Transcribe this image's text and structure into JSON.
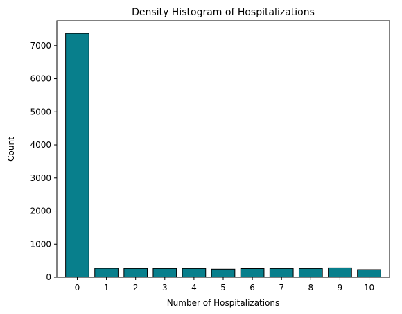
{
  "chart_data": {
    "type": "bar",
    "title": "Density Histogram of Hospitalizations",
    "xlabel": "Number of Hospitalizations",
    "ylabel": "Count",
    "categories": [
      "0",
      "1",
      "2",
      "3",
      "4",
      "5",
      "6",
      "7",
      "8",
      "9",
      "10"
    ],
    "values": [
      7370,
      270,
      265,
      265,
      265,
      245,
      262,
      265,
      265,
      285,
      230
    ],
    "ylim": [
      0,
      7750
    ],
    "yticks": [
      0,
      1000,
      2000,
      3000,
      4000,
      5000,
      6000,
      7000
    ],
    "ytick_labels": [
      "0",
      "1000",
      "2000",
      "3000",
      "4000",
      "5000",
      "6000",
      "7000"
    ],
    "bar_color": "#087f8c",
    "bar_edge_color": "#000000",
    "grid": false,
    "legend": "none"
  }
}
